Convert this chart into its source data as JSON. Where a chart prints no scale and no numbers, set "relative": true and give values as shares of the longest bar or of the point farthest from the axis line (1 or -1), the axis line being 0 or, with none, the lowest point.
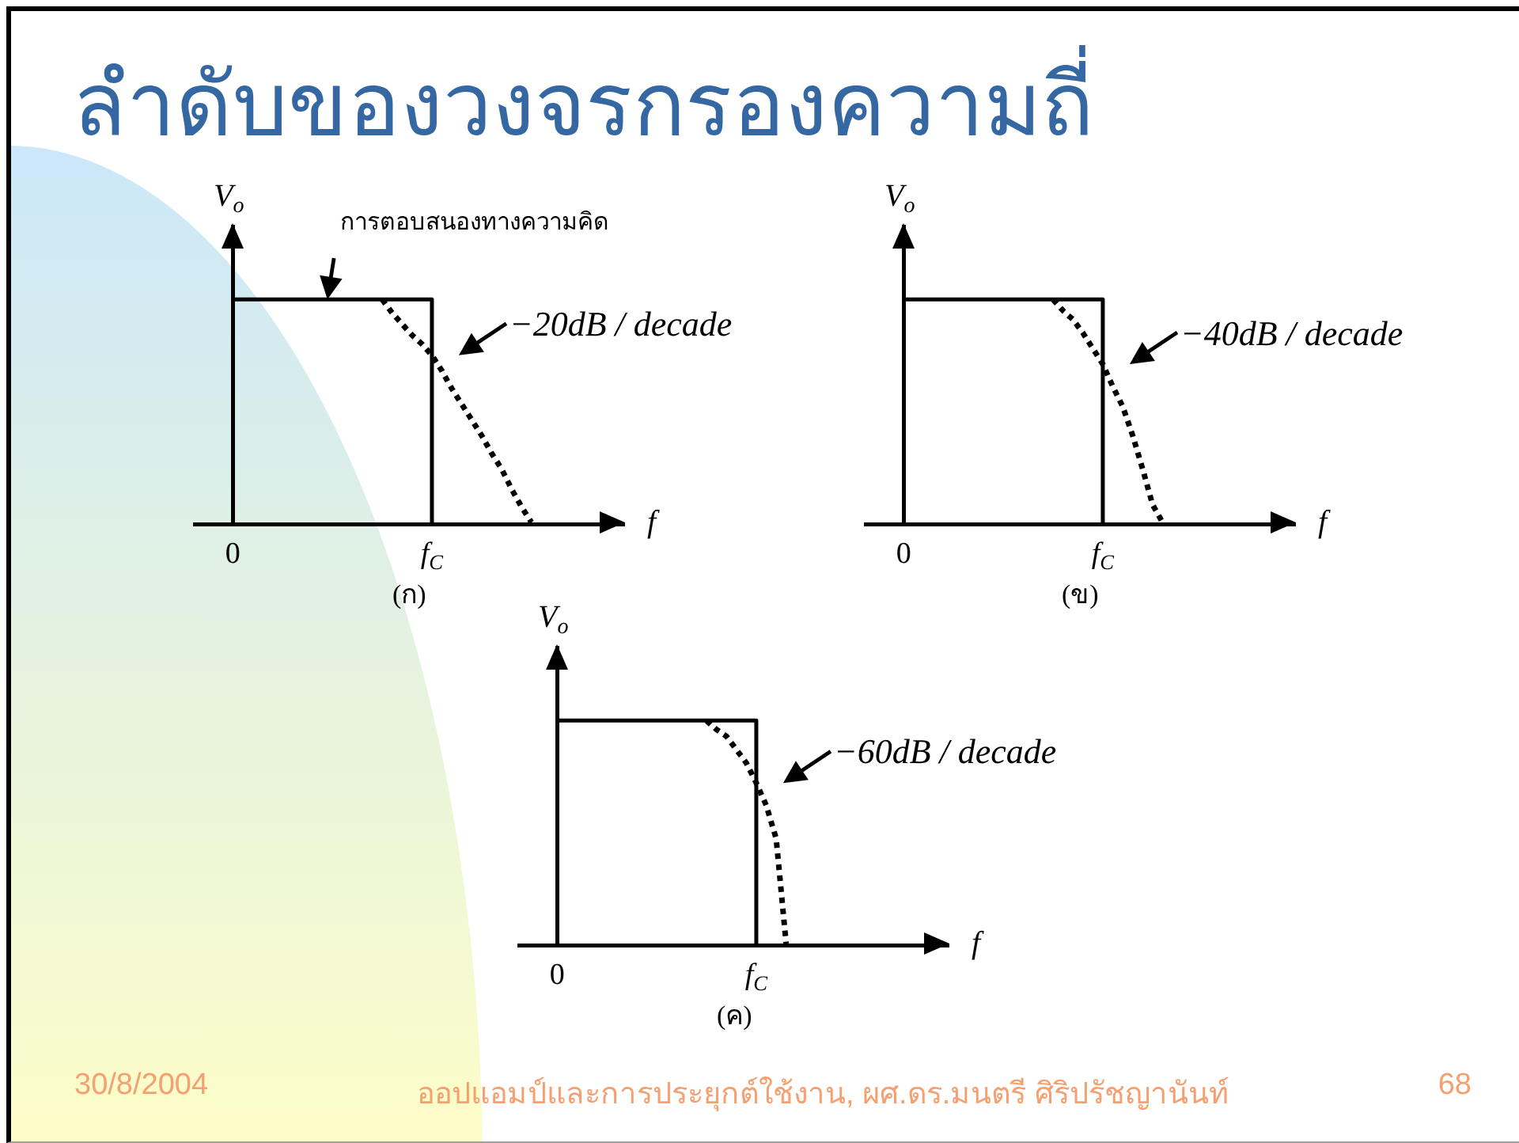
{
  "chart_data": [
    {
      "type": "other",
      "title": "ลำดับของวงจรกรองความถี่",
      "annotations": [
        "30/8/2004",
        "ออปแอมป์และการประยุกต์ใช้งาน, ผศ.ดร.มนตรี ศิริปรัชญานันท์",
        "68"
      ]
    },
    {
      "type": "line",
      "relative": true,
      "xlabel": "f",
      "ylabel": "V$_{o}$",
      "categories": [
        "0",
        null,
        null,
        null,
        null,
        null,
        null,
        null,
        null,
        null,
        null,
        null,
        null,
        null,
        null,
        null,
        null,
        null,
        null,
        null,
        "f$_{C}$",
        null,
        null,
        null,
        null,
        null,
        null,
        null,
        null,
        null,
        null,
        null,
        null,
        null,
        null,
        null,
        null,
        null,
        null,
        null
      ],
      "series": [
        {
          "type": "step",
          "color": "#000000",
          "line_style": "solid",
          "values": [
            1,
            1,
            1,
            1,
            1,
            1,
            1,
            1,
            1,
            1,
            1,
            1,
            1,
            1,
            1,
            1,
            1,
            1,
            1,
            1,
            0,
            null,
            null,
            null,
            null,
            null,
            null,
            null,
            null,
            null,
            null,
            null,
            null,
            null,
            null,
            null,
            null,
            null,
            null,
            null
          ]
        },
        {
          "type": "line",
          "color": "#000000",
          "line_style": "dotted",
          "values": [
            null,
            null,
            null,
            null,
            null,
            null,
            null,
            null,
            null,
            null,
            null,
            null,
            null,
            null,
            null,
            1,
            0.94,
            0.89,
            0.84,
            0.8,
            0.75,
            0.68,
            0.6,
            0.53,
            0.46,
            0.39,
            0.31,
            0.24,
            0.15,
            0.07,
            0,
            null,
            null,
            null,
            null,
            null,
            null,
            null,
            null,
            null
          ]
        }
      ],
      "annotations": [
        "การตอบสนองทางความคิด",
        {
          "text": "−20dB / decade",
          "x": "f$_{C}$",
          "y": 0.75
        },
        "(ก)"
      ]
    },
    {
      "type": "line",
      "relative": true,
      "xlabel": "f",
      "ylabel": "V$_{o}$",
      "categories": [
        "0",
        null,
        null,
        null,
        null,
        null,
        null,
        null,
        null,
        null,
        null,
        null,
        null,
        null,
        null,
        null,
        null,
        null,
        null,
        null,
        "f$_{C}$",
        null,
        null,
        null,
        null,
        null,
        null,
        null,
        null,
        null,
        null,
        null,
        null,
        null,
        null,
        null,
        null,
        null,
        null,
        null
      ],
      "series": [
        {
          "type": "step",
          "color": "#000000",
          "line_style": "solid",
          "values": [
            1,
            1,
            1,
            1,
            1,
            1,
            1,
            1,
            1,
            1,
            1,
            1,
            1,
            1,
            1,
            1,
            1,
            1,
            1,
            1,
            0,
            null,
            null,
            null,
            null,
            null,
            null,
            null,
            null,
            null,
            null,
            null,
            null,
            null,
            null,
            null,
            null,
            null,
            null,
            null
          ]
        },
        {
          "type": "line",
          "color": "#000000",
          "line_style": "dotted",
          "values": [
            null,
            null,
            null,
            null,
            null,
            null,
            null,
            null,
            null,
            null,
            null,
            null,
            null,
            null,
            null,
            1,
            0.95,
            0.91,
            0.85,
            0.78,
            0.71,
            0.61,
            0.52,
            0.39,
            0.24,
            0.08,
            0,
            null,
            null,
            null,
            null,
            null,
            null,
            null,
            null,
            null,
            null,
            null,
            null,
            null
          ]
        }
      ],
      "annotations": [
        {
          "text": "−40dB / decade",
          "x": "f$_{C}$",
          "y": 0.71
        },
        "(ข)"
      ]
    },
    {
      "type": "line",
      "relative": true,
      "xlabel": "f",
      "ylabel": "V$_{o}$",
      "categories": [
        "0",
        null,
        null,
        null,
        null,
        null,
        null,
        null,
        null,
        null,
        null,
        null,
        null,
        null,
        null,
        null,
        null,
        null,
        null,
        null,
        "f$_{C}$",
        null,
        null,
        null,
        null,
        null,
        null,
        null,
        null,
        null,
        null,
        null,
        null,
        null,
        null,
        null,
        null,
        null,
        null,
        null
      ],
      "series": [
        {
          "type": "step",
          "color": "#000000",
          "line_style": "solid",
          "values": [
            1,
            1,
            1,
            1,
            1,
            1,
            1,
            1,
            1,
            1,
            1,
            1,
            1,
            1,
            1,
            1,
            1,
            1,
            1,
            1,
            0,
            null,
            null,
            null,
            null,
            null,
            null,
            null,
            null,
            null,
            null,
            null,
            null,
            null,
            null,
            null,
            null,
            null,
            null,
            null
          ]
        },
        {
          "type": "line",
          "color": "#000000",
          "line_style": "dotted",
          "values": [
            null,
            null,
            null,
            null,
            null,
            null,
            null,
            null,
            null,
            null,
            null,
            null,
            null,
            null,
            null,
            1,
            0.96,
            0.93,
            0.87,
            0.81,
            0.72,
            0.62,
            0.47,
            0,
            null,
            null,
            null,
            null,
            null,
            null,
            null,
            null,
            null,
            null,
            null,
            null,
            null,
            null,
            null,
            null
          ]
        }
      ],
      "annotations": [
        {
          "text": "−60dB / decade",
          "x": "f$_{C}$",
          "y": 0.72
        },
        "(ค)"
      ]
    }
  ]
}
